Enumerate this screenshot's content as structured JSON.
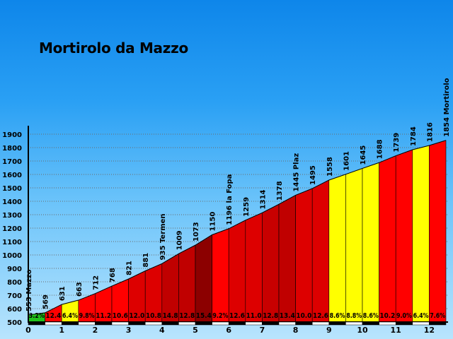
{
  "chart_data": {
    "type": "area",
    "title": "Mortirolo da Mazzo",
    "xlabel": "",
    "ylabel": "",
    "xlim": [
      0,
      12.5
    ],
    "ylim": [
      500,
      1900
    ],
    "x_ticks": [
      "0",
      "1",
      "2",
      "3",
      "4",
      "5",
      "6",
      "7",
      "8",
      "9",
      "10",
      "11",
      "12"
    ],
    "y_ticks": [
      "500",
      "600",
      "700",
      "800",
      "900",
      "1000",
      "1100",
      "1200",
      "1300",
      "1400",
      "1500",
      "1600",
      "1700",
      "1800",
      "1900"
    ],
    "grid": "horizontal",
    "points": [
      {
        "x": 0,
        "y": 553,
        "label": "553 Mazzo"
      },
      {
        "x": 0.5,
        "y": 569,
        "label": "569"
      },
      {
        "x": 1,
        "y": 631,
        "label": "631"
      },
      {
        "x": 1.5,
        "y": 663,
        "label": "663"
      },
      {
        "x": 2,
        "y": 712,
        "label": "712"
      },
      {
        "x": 2.5,
        "y": 768,
        "label": "768"
      },
      {
        "x": 3,
        "y": 821,
        "label": "821"
      },
      {
        "x": 3.5,
        "y": 881,
        "label": "881"
      },
      {
        "x": 4,
        "y": 935,
        "label": "935 Termen"
      },
      {
        "x": 4.5,
        "y": 1009,
        "label": "1009"
      },
      {
        "x": 5,
        "y": 1073,
        "label": "1073"
      },
      {
        "x": 5.5,
        "y": 1150,
        "label": "1150"
      },
      {
        "x": 6,
        "y": 1196,
        "label": "1196 la Fopa"
      },
      {
        "x": 6.5,
        "y": 1259,
        "label": "1259"
      },
      {
        "x": 7,
        "y": 1314,
        "label": "1314"
      },
      {
        "x": 7.5,
        "y": 1378,
        "label": "1378"
      },
      {
        "x": 8,
        "y": 1445,
        "label": "1445 Plaz"
      },
      {
        "x": 8.5,
        "y": 1495,
        "label": "1495"
      },
      {
        "x": 9,
        "y": 1558,
        "label": "1558"
      },
      {
        "x": 9.5,
        "y": 1601,
        "label": "1601"
      },
      {
        "x": 10,
        "y": 1645,
        "label": "1645"
      },
      {
        "x": 10.5,
        "y": 1688,
        "label": "1688"
      },
      {
        "x": 11,
        "y": 1739,
        "label": "1739"
      },
      {
        "x": 11.5,
        "y": 1784,
        "label": "1784"
      },
      {
        "x": 12,
        "y": 1816,
        "label": "1816"
      },
      {
        "x": 12.5,
        "y": 1854,
        "label": "1854 Mortirolo"
      }
    ],
    "segments": [
      {
        "grade": "3.2%",
        "color": "#21c21b"
      },
      {
        "grade": "12.4",
        "color": "#ff0000"
      },
      {
        "grade": "6.4%",
        "color": "#ffff00"
      },
      {
        "grade": "9.8%",
        "color": "#ff0000"
      },
      {
        "grade": "11.2",
        "color": "#ff0000"
      },
      {
        "grade": "10.6",
        "color": "#ff0000"
      },
      {
        "grade": "12.0",
        "color": "#dd0000"
      },
      {
        "grade": "10.8",
        "color": "#dd0000"
      },
      {
        "grade": "14.8",
        "color": "#c00000"
      },
      {
        "grade": "12.8",
        "color": "#c00000"
      },
      {
        "grade": "15.4",
        "color": "#8c0000"
      },
      {
        "grade": "9.2%",
        "color": "#ff0000"
      },
      {
        "grade": "12.6",
        "color": "#dd0000"
      },
      {
        "grade": "11.0",
        "color": "#dd0000"
      },
      {
        "grade": "12.8",
        "color": "#c80000"
      },
      {
        "grade": "13.4",
        "color": "#c00000"
      },
      {
        "grade": "10.0",
        "color": "#dd0000"
      },
      {
        "grade": "12.6",
        "color": "#dd0000"
      },
      {
        "grade": "8.6%",
        "color": "#ffff00"
      },
      {
        "grade": "8.8%",
        "color": "#ffff00"
      },
      {
        "grade": "8.6%",
        "color": "#ffff00"
      },
      {
        "grade": "10.2",
        "color": "#ff0000"
      },
      {
        "grade": "9.0%",
        "color": "#ff0000"
      },
      {
        "grade": "6.4%",
        "color": "#ffff00"
      },
      {
        "grade": "7.6%",
        "color": "#ff0000"
      }
    ]
  }
}
